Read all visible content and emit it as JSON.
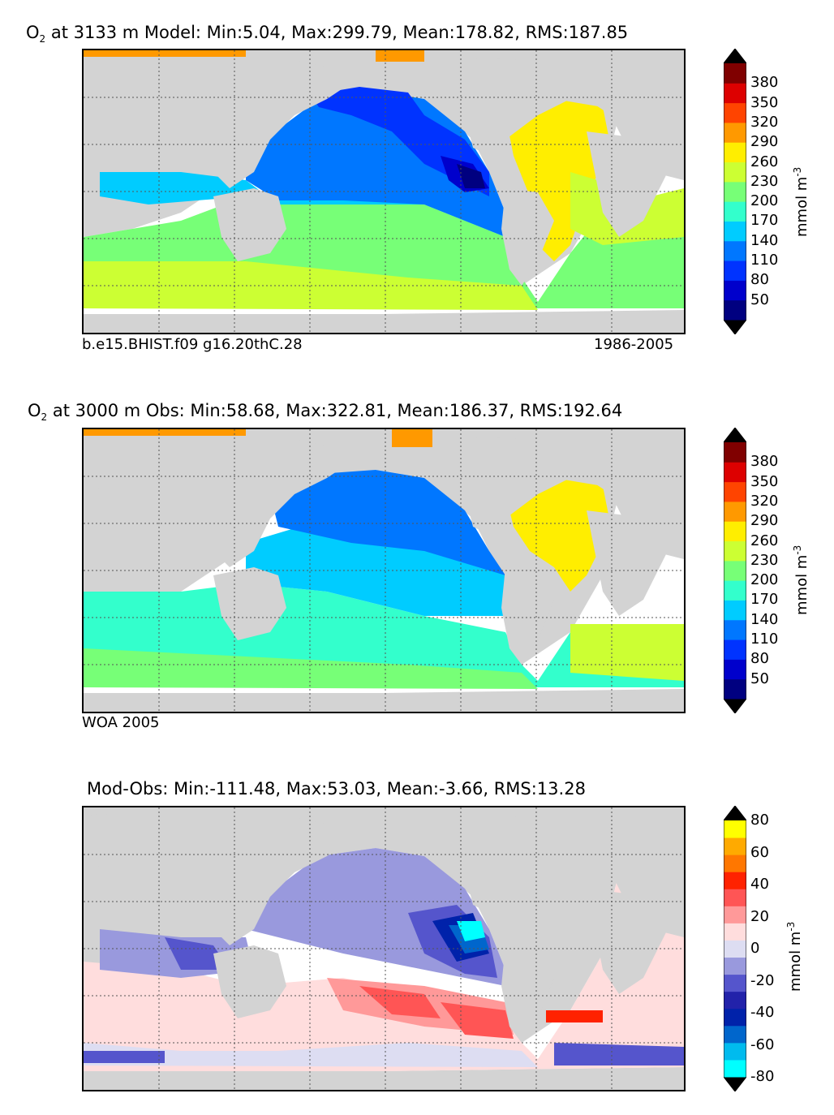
{
  "panels": [
    {
      "title_prefix": "O",
      "title_sub": "2",
      "title_rest": " at 3133 m Model: Min:5.04, Max:299.79, Mean:178.82, RMS:187.85",
      "footer_left": "b.e15.BHIST.f09 g16.20thC.28",
      "footer_right": "1986-2005",
      "colorbar": {
        "label": "mmol m",
        "label_sup": "-3",
        "ticks": [
          "380",
          "350",
          "320",
          "290",
          "260",
          "230",
          "200",
          "170",
          "140",
          "110",
          "80",
          "50"
        ],
        "colors": [
          "#000080",
          "#0000cc",
          "#0033ff",
          "#0077ff",
          "#00ccff",
          "#33ffcc",
          "#77ff77",
          "#ccff33",
          "#ffee00",
          "#ff9900",
          "#ff4400",
          "#dd0000",
          "#800000"
        ]
      }
    },
    {
      "title_prefix": "O",
      "title_sub": "2",
      "title_rest": " at 3000 m Obs: Min:58.68, Max:322.81, Mean:186.37, RMS:192.64",
      "footer_left": "WOA 2005",
      "footer_right": "",
      "colorbar": {
        "label": "mmol m",
        "label_sup": "-3",
        "ticks": [
          "380",
          "350",
          "320",
          "290",
          "260",
          "230",
          "200",
          "170",
          "140",
          "110",
          "80",
          "50"
        ],
        "colors": [
          "#000080",
          "#0000cc",
          "#0033ff",
          "#0077ff",
          "#00ccff",
          "#33ffcc",
          "#77ff77",
          "#ccff33",
          "#ffee00",
          "#ff9900",
          "#ff4400",
          "#dd0000",
          "#800000"
        ]
      }
    },
    {
      "title_prefix": "",
      "title_sub": "",
      "title_rest": "Mod-Obs: Min:-111.48, Max:53.03, Mean:-3.66, RMS:13.28",
      "footer_left": "",
      "footer_right": "",
      "colorbar": {
        "label": "mmol m",
        "label_sup": "-3",
        "ticks": [
          "80",
          "60",
          "40",
          "20",
          "0",
          "-20",
          "-40",
          "-60",
          "-80"
        ],
        "colors": [
          "#00ffff",
          "#00bbee",
          "#0066cc",
          "#0022aa",
          "#2222aa",
          "#5555cc",
          "#9999dd",
          "#ddddf2",
          "#ffdddd",
          "#ff9999",
          "#ff5555",
          "#ff2200",
          "#ff7700",
          "#ffaa00",
          "#ffff00"
        ]
      }
    }
  ],
  "colors": {
    "land": "#d3d3d3",
    "grid": "#555555"
  }
}
